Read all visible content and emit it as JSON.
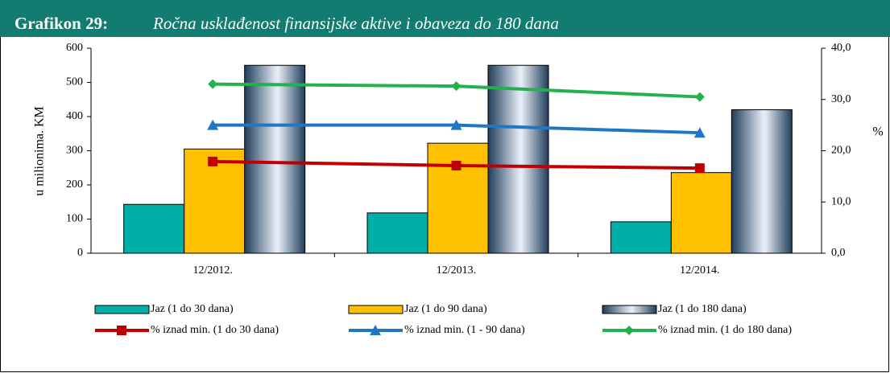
{
  "chart_data": {
    "type": "bar_line",
    "title": "Grafikon 29:",
    "subtitle": "Ročna usklađenost finansijske aktive i obaveza do 180 dana",
    "y_label": "u milionima.  KM",
    "y2_label": "%",
    "categories": [
      "12/2012.",
      "12/2013.",
      "12/2014."
    ],
    "ylim": [
      0,
      600
    ],
    "yticks": [
      0,
      100,
      200,
      300,
      400,
      500,
      600
    ],
    "y2lim": [
      0,
      40
    ],
    "y2ticks": [
      {
        "value": 0,
        "label": "0,0"
      },
      {
        "value": 10,
        "label": "10,0"
      },
      {
        "value": 20,
        "label": "20,0"
      },
      {
        "value": 30,
        "label": "30,0"
      },
      {
        "value": 40,
        "label": "40,0"
      }
    ],
    "series": [
      {
        "name": "Jaz (1 do 30 dana)",
        "kind": "bar",
        "color": "#00b0a8",
        "values": [
          143,
          118,
          92
        ]
      },
      {
        "name": "Jaz (1 do 90 dana)",
        "kind": "bar",
        "color": "#ffc000",
        "values": [
          305,
          322,
          236
        ]
      },
      {
        "name": "Jaz (1 do 180 dana)",
        "kind": "bar",
        "color": "#1f3d5a",
        "gradient": true,
        "values": [
          550,
          550,
          420
        ]
      },
      {
        "name": "% iznad min. (1 do 30 dana)",
        "kind": "line",
        "axis": "y2",
        "color": "#c00000",
        "marker": "square",
        "values": [
          17.9,
          17.1,
          16.6
        ]
      },
      {
        "name": "% iznad min. (1 - 90 dana)",
        "kind": "line",
        "axis": "y2",
        "color": "#1f77c4",
        "marker": "triangle",
        "values": [
          25.0,
          25.0,
          23.5
        ]
      },
      {
        "name": "% iznad min. (1 do 180 dana)",
        "kind": "line",
        "axis": "y2",
        "color": "#22b14c",
        "marker": "diamond",
        "values": [
          33.0,
          32.6,
          30.5
        ]
      }
    ]
  }
}
